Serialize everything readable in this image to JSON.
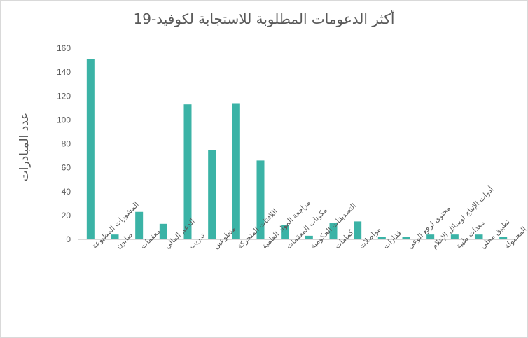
{
  "chart_data": {
    "type": "bar",
    "title": "أكثر الدعومات المطلوبة للاستجابة لكوفيد-19",
    "xlabel": "",
    "ylabel": "عدد المبادرات",
    "ylim": [
      0,
      160
    ],
    "yticks": [
      0,
      20,
      40,
      60,
      80,
      100,
      120,
      140,
      160
    ],
    "grid": false,
    "legend": "none",
    "bar_color": "#3bb3a6",
    "categories": [
      "المشورات المطبوعة",
      "صابون",
      "معقمات",
      "الدعم المالي",
      "تدريب",
      "متطوعين",
      "اللافتات المتحركة",
      "مراجعة المواد العلمية",
      "مكونات المعقمات",
      "التصديقات الحكومية",
      "كمامات",
      "مواصلات",
      "قفازات",
      "محتوى لرفع الوعي",
      "أدوات الإنتاج لوسائل الإعلام",
      "معدات طبية",
      "تطبيق محلي",
      "معدات غسل اليدين المحمولة"
    ],
    "values": [
      151,
      4,
      23,
      13,
      113,
      75,
      114,
      66,
      12,
      3,
      14,
      15,
      2,
      2,
      4,
      4,
      4,
      2
    ]
  }
}
